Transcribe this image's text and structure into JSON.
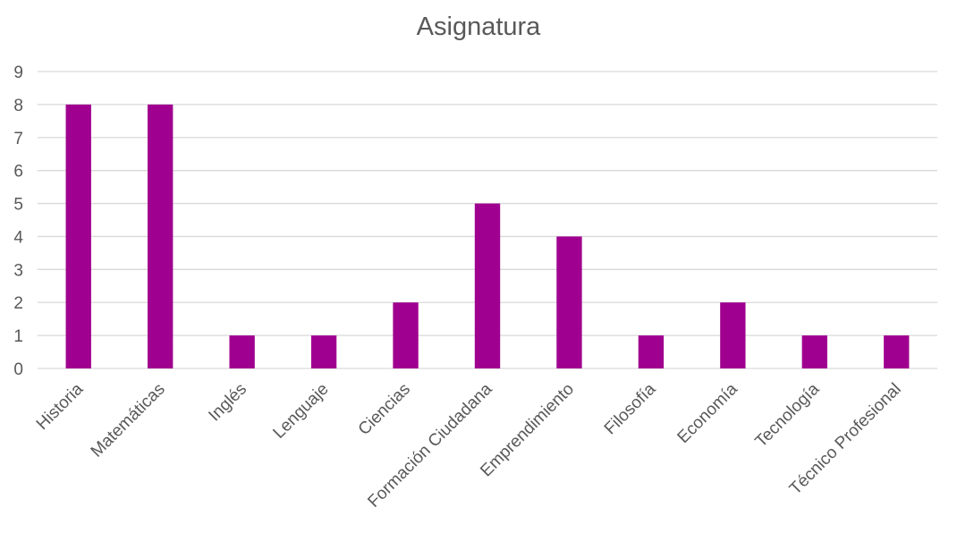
{
  "chart_data": {
    "type": "bar",
    "title": "Asignatura",
    "categories": [
      "Historia",
      "Matemáticas",
      "Inglés",
      "Lenguaje",
      "Ciencias",
      "Formación Ciudadana",
      "Emprendimiento",
      "Filosofía",
      "Economía",
      "Tecnología",
      "Técnico Profesional"
    ],
    "values": [
      8,
      8,
      1,
      1,
      2,
      5,
      4,
      1,
      2,
      1,
      1
    ],
    "xlabel": "",
    "ylabel": "",
    "ylim": [
      0,
      9
    ],
    "yticks": [
      0,
      1,
      2,
      3,
      4,
      5,
      6,
      7,
      8,
      9
    ],
    "grid": true,
    "legend": "none",
    "bar_color": "#a0008f"
  }
}
